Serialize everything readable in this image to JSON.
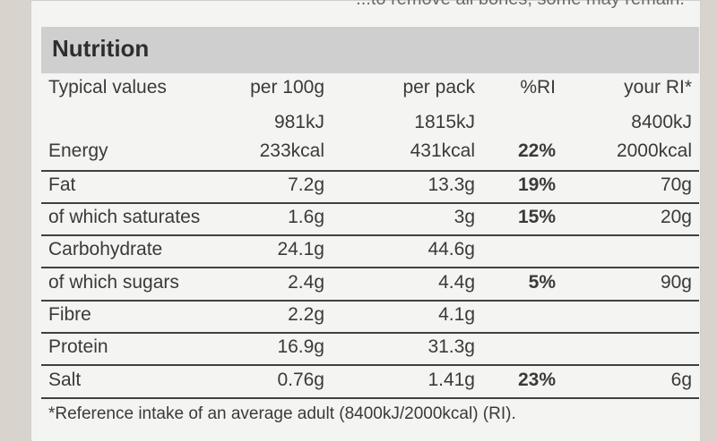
{
  "top_text": "...to remove all bones, some may remain.",
  "title": "Nutrition",
  "headers": {
    "label": "Typical values",
    "per100": "per 100g",
    "perpack": "per pack",
    "ri": "%RI",
    "yourri": "your RI*"
  },
  "energy_kj": {
    "per100": "981kJ",
    "perpack": "1815kJ",
    "yourri": "8400kJ"
  },
  "energy": {
    "label": "Energy",
    "per100": "233kcal",
    "perpack": "431kcal",
    "ri": "22%",
    "yourri": "2000kcal"
  },
  "rows": [
    {
      "label": "Fat",
      "per100": "7.2g",
      "perpack": "13.3g",
      "ri": "19%",
      "yourri": "70g"
    },
    {
      "label": "of which saturates",
      "per100": "1.6g",
      "perpack": "3g",
      "ri": "15%",
      "yourri": "20g"
    },
    {
      "label": "Carbohydrate",
      "per100": "24.1g",
      "perpack": "44.6g",
      "ri": "",
      "yourri": ""
    },
    {
      "label": "of which sugars",
      "per100": "2.4g",
      "perpack": "4.4g",
      "ri": "5%",
      "yourri": "90g"
    },
    {
      "label": "Fibre",
      "per100": "2.2g",
      "perpack": "4.1g",
      "ri": "",
      "yourri": ""
    },
    {
      "label": "Protein",
      "per100": "16.9g",
      "perpack": "31.3g",
      "ri": "",
      "yourri": ""
    },
    {
      "label": "Salt",
      "per100": "0.76g",
      "perpack": "1.41g",
      "ri": "23%",
      "yourri": "6g"
    }
  ],
  "footnote": "*Reference intake of an average adult (8400kJ/2000kcal) (RI)."
}
